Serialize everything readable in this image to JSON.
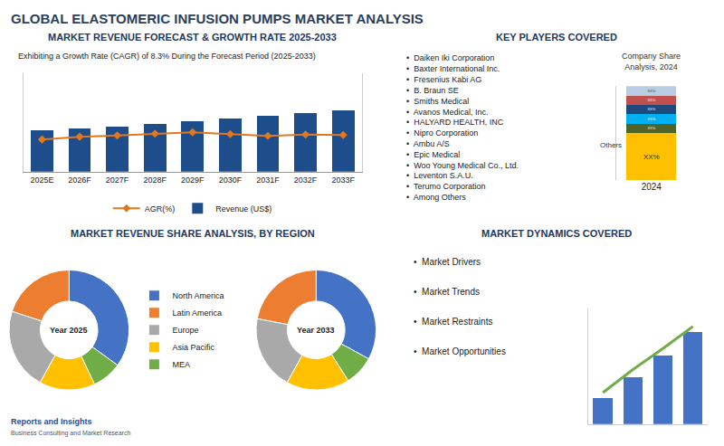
{
  "title": "GLOBAL ELASTOMERIC INFUSION PUMPS MARKET ANALYSIS",
  "annotations": [
    "Reports and Insights",
    "Business Consulting and Market Research"
  ],
  "chart_data": [
    {
      "type": "bar",
      "title": "MARKET REVENUE FORECAST & GROWTH RATE 2025-2033",
      "subtitle": "Exhibiting a Growth Rate (CAGR) of 8.3% During the Forecast Period (2025-2033)",
      "categories": [
        "2025E",
        "2026F",
        "2027F",
        "2028F",
        "2029F",
        "2030F",
        "2031F",
        "2032F",
        "2033F"
      ],
      "series": [
        {
          "name": "Revenue (US$)",
          "type": "bar",
          "color": "#1e4d8c",
          "values": [
            3.2,
            3.35,
            3.52,
            3.72,
            3.95,
            4.15,
            4.35,
            4.58,
            4.78
          ]
        },
        {
          "name": "AGR(%)",
          "type": "line",
          "color": "#e07820",
          "marker": "diamond",
          "line_style": "solid",
          "axis": "y2",
          "values": [
            7.2,
            7.8,
            8.1,
            8.5,
            8.8,
            8.4,
            8.0,
            8.3,
            8.2
          ]
        }
      ],
      "ylim": [
        0,
        7.648
      ],
      "y2lim": [
        0,
        22
      ],
      "tick_labels": "x",
      "grid": false,
      "legend": "bottom"
    },
    {
      "type": "pie",
      "title": "MARKET REVENUE SHARE ANALYSIS, BY REGION",
      "categories": [
        "North America",
        "Latin America",
        "Europe",
        "Asia Pacific",
        "MEA"
      ],
      "colors": [
        "#4472c4",
        "#ed7d31",
        "#a9a9a9",
        "#ffc000",
        "#70ad47"
      ],
      "series": [
        {
          "name": "Year 2025",
          "values": [
            35,
            20,
            22,
            15,
            8
          ]
        },
        {
          "name": "Year 2033",
          "values": [
            33,
            22,
            20,
            17,
            8
          ]
        }
      ],
      "legend": "center",
      "data_labels": false
    },
    {
      "type": "bar",
      "title": "KEY PLAYERS COVERED",
      "subtitle": "Company Share\nAnalysis, 2024",
      "annotations": [
        "•  Daiken Iki Corporation",
        "•  Baxter International Inc.",
        "•  Fresenius Kabi AG",
        "•  B. Braun SE",
        "•  Smiths Medical",
        "•  Avanos Medical, Inc.",
        "•  HALYARD HEALTH, INC",
        "•  Nipro Corporation",
        "•  Ambu A/S",
        "•  Epic Medical",
        "•  Woo Young Medical Co., Ltd.",
        "•  Leventon S.A.U.",
        "•  Terumo Corporation",
        "•  Among Others"
      ],
      "stacked": true,
      "categories": [
        "2024"
      ],
      "series": [
        {
          "color": "#b8cce4",
          "values": [
            10
          ],
          "value_labels": [
            "XX%"
          ]
        },
        {
          "color": "#c0504d",
          "values": [
            10
          ],
          "value_labels": [
            "XX%"
          ]
        },
        {
          "color": "#1f497d",
          "values": [
            10
          ],
          "value_labels": [
            "XX%"
          ]
        },
        {
          "color": "#00b0f0",
          "values": [
            10
          ],
          "value_labels": [
            "XX%"
          ]
        },
        {
          "color": "#4f6228",
          "values": [
            10
          ],
          "value_labels": [
            "XX%"
          ]
        },
        {
          "name": "Others",
          "color": "#ffc000",
          "values": [
            50
          ],
          "value_labels": [
            "XX%"
          ]
        }
      ],
      "ylim": [
        0,
        100
      ],
      "data_labels": true,
      "tick_labels": "x",
      "grid": false
    },
    {
      "type": "bar",
      "title": "MARKET DYNAMICS COVERED",
      "annotations": [
        "•  Market Drivers",
        "•  Market Trends",
        "•  Market Restraints",
        "•  Market Opportunities"
      ],
      "categories": [
        null,
        null,
        null,
        null
      ],
      "series": [
        {
          "type": "bar",
          "color": "#4472c4",
          "values": [
            0.25,
            0.45,
            0.65,
            0.88
          ]
        },
        {
          "type": "line",
          "color": "#70ad47",
          "values": [
            0.3,
            0.52,
            0.72,
            0.93
          ]
        }
      ],
      "ylim": [
        0,
        1.1
      ],
      "tick_labels": false,
      "grid": false
    }
  ]
}
